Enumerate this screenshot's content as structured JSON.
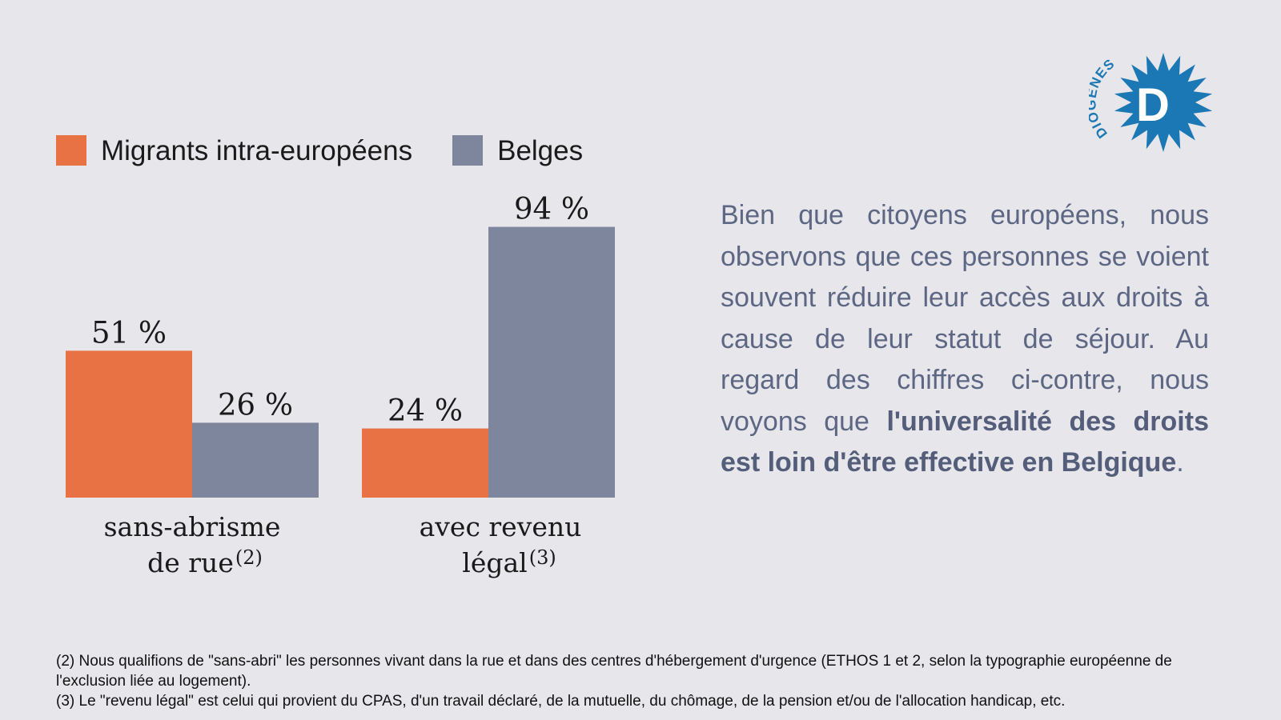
{
  "legend": [
    {
      "label": "Migrants intra-européens",
      "color": "#e87244"
    },
    {
      "label": "Belges",
      "color": "#7e869e"
    }
  ],
  "chart_data": {
    "type": "bar",
    "categories": [
      {
        "line1": "sans-abrisme",
        "line2": "de rue",
        "note": "(2)"
      },
      {
        "line1": "avec revenu",
        "line2": "légal",
        "note": "(3)"
      }
    ],
    "series": [
      {
        "name": "Migrants intra-européens",
        "color": "#e87244",
        "values": [
          51,
          24
        ],
        "labels": [
          "51 %",
          "24 %"
        ]
      },
      {
        "name": "Belges",
        "color": "#7e869e",
        "values": [
          26,
          94
        ],
        "labels": [
          "26 %",
          "94 %"
        ]
      }
    ],
    "ylim": [
      0,
      100
    ],
    "grid": false,
    "legend_position": "top-left"
  },
  "text": {
    "p1": "Bien que citoyens européens, nous observons que ces personnes se voient souvent réduire leur accès aux droits à cause de leur statut de séjour. Au regard des chiffres ci-contre, nous voyons que ",
    "bold": "l'universalité des droits est loin d'être effective en Belgique",
    "end": "."
  },
  "logo": {
    "text": "DIOGENES",
    "letter": "D",
    "color": "#1c78b4"
  },
  "footnotes": [
    "(2) Nous qualifions de \"sans-abri\" les personnes vivant dans la rue et dans des centres d'hébergement d'urgence (ETHOS 1 et 2, selon la typographie européenne de l'exclusion liée au logement).",
    "(3) Le \"revenu légal\" est celui qui provient du CPAS, d'un travail déclaré, de la mutuelle, du chômage, de la pension et/ou de l'allocation handicap, etc."
  ]
}
